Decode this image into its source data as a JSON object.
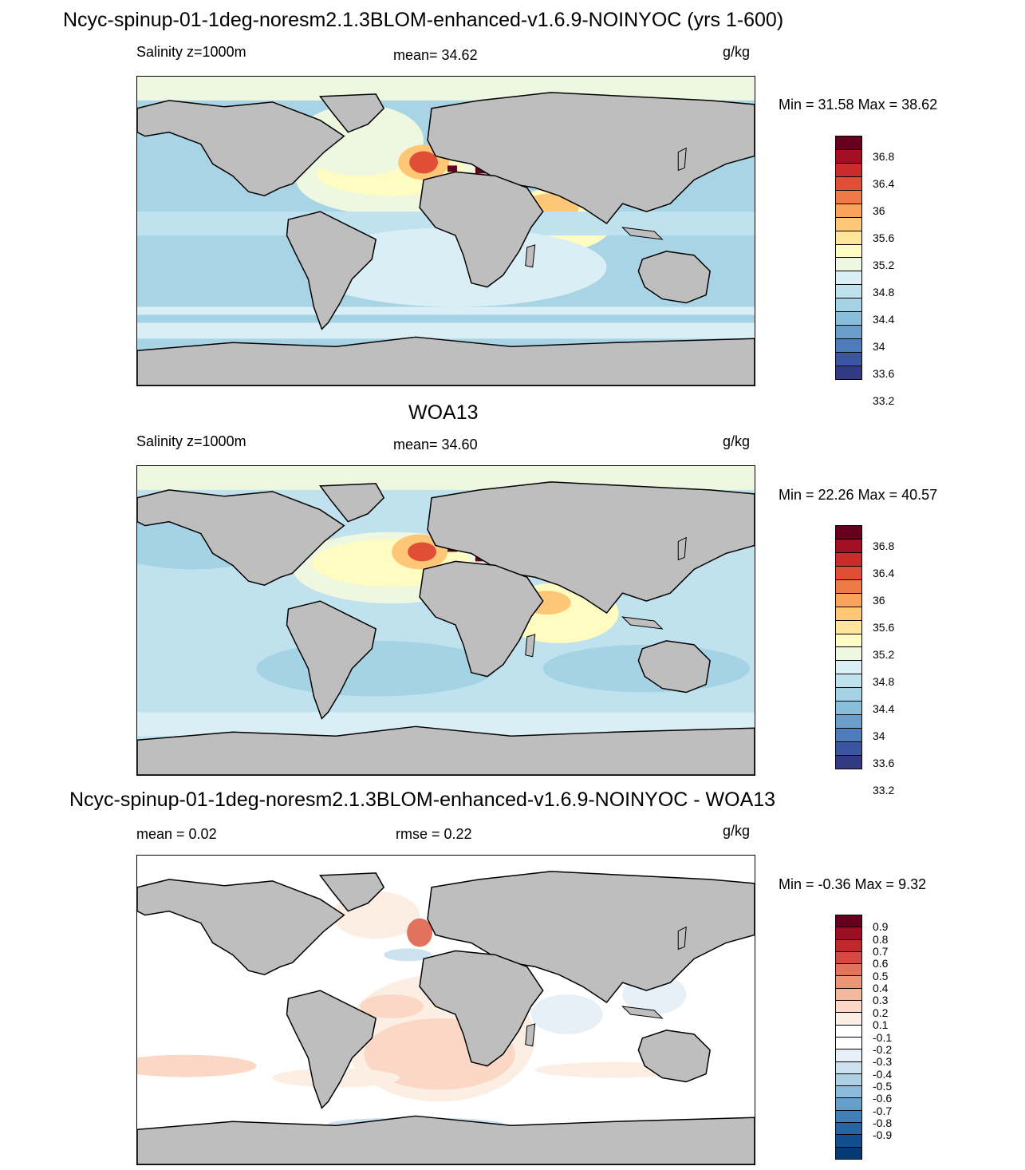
{
  "panel1": {
    "title": "Ncyc-spinup-01-1deg-noresm2.1.3BLOM-enhanced-v1.6.9-NOINYOC (yrs 1-600)",
    "left": "Salinity z=1000m",
    "center": "mean=  34.62",
    "units": "g/kg",
    "minmax": "Min =  31.58 Max =  38.62"
  },
  "panel2": {
    "title": "WOA13",
    "left": "Salinity z=1000m",
    "center": "mean=  34.60",
    "units": "g/kg",
    "minmax": "Min =  22.26 Max =  40.57"
  },
  "panel3": {
    "title": "Ncyc-spinup-01-1deg-noresm2.1.3BLOM-enhanced-v1.6.9-NOINYOC - WOA13",
    "left": "mean =    0.02",
    "center": "rmse =    0.22",
    "units": "g/kg",
    "minmax": "Min =  -0.36 Max =    9.32"
  },
  "salinity_colorbar": {
    "colors": [
      "#67001f",
      "#a50f24",
      "#cb2a2b",
      "#e04f35",
      "#f07a45",
      "#f9a35a",
      "#fdc777",
      "#fee69a",
      "#fefcc0",
      "#eef7df",
      "#d9eff5",
      "#bfe2ee",
      "#a5d3e6",
      "#89bedd",
      "#6a9fcc",
      "#4e7bb9",
      "#3b55a0",
      "#313a82"
    ],
    "labels": [
      "36.8",
      "36.4",
      "36",
      "35.6",
      "35.2",
      "34.8",
      "34.4",
      "34",
      "33.6",
      "33.2"
    ]
  },
  "difference_colorbar": {
    "colors": [
      "#67001f",
      "#9b0f25",
      "#c0282c",
      "#d34a42",
      "#e0725e",
      "#eb9579",
      "#f4b89b",
      "#fad8c5",
      "#fdeee4",
      "#ffffff",
      "#ffffff",
      "#e7f0f7",
      "#cde2ef",
      "#aed0e5",
      "#8cbbdb",
      "#659fcb",
      "#3f7fb9",
      "#2565a6",
      "#114d8f",
      "#053b75"
    ],
    "labels": [
      "0.9",
      "0.8",
      "0.7",
      "0.6",
      "0.5",
      "0.4",
      "0.3",
      "0.2",
      "0.1",
      "-0.1",
      "-0.2",
      "-0.3",
      "-0.4",
      "-0.5",
      "-0.6",
      "-0.7",
      "-0.8",
      "-0.9"
    ]
  }
}
